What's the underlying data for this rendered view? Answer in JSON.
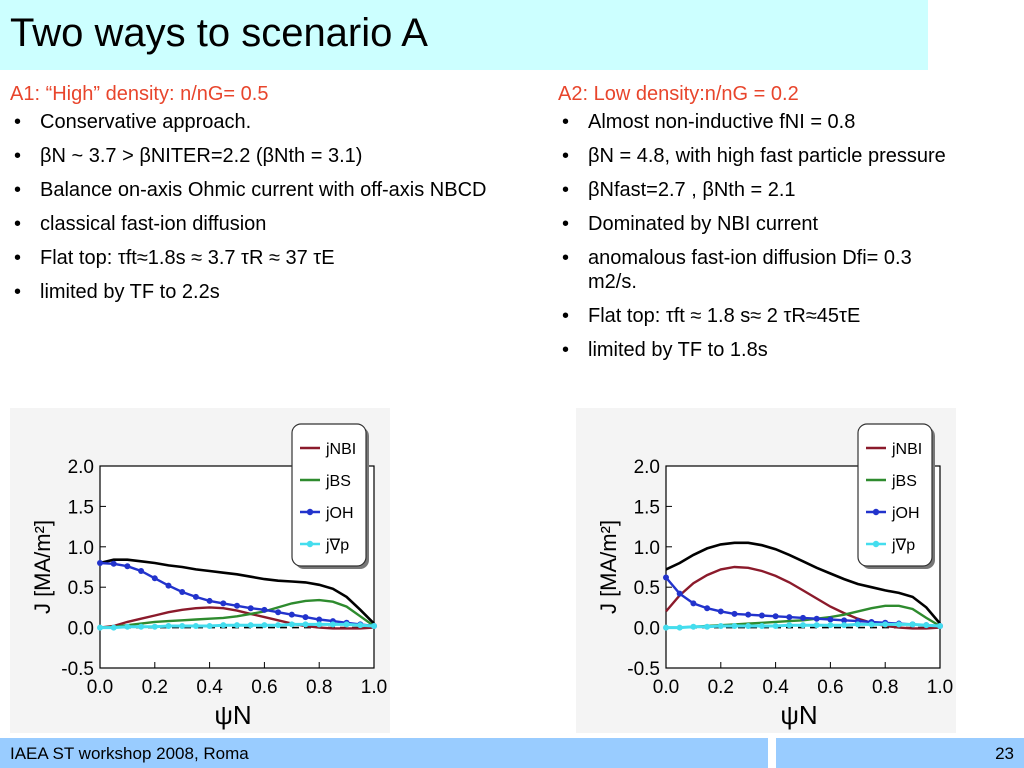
{
  "slide": {
    "title": "Two ways to scenario A",
    "footer_left": "IAEA ST workshop 2008, Roma",
    "page_number": "23"
  },
  "col_a": {
    "heading": "A1: “High” density: n/nG= 0.5",
    "bullets": [
      "Conservative approach.",
      "βN ~ 3.7 > βNITER=2.2 (βNth = 3.1)",
      "Balance on-axis Ohmic current with off-axis NBCD",
      "classical fast-ion diffusion",
      "Flat top: τft≈1.8s ≈ 3.7 τR ≈ 37 τE",
      "limited by TF to 2.2s"
    ]
  },
  "col_b": {
    "heading": "A2: Low density:n/nG = 0.2",
    "bullets": [
      "Almost non-inductive fNI = 0.8",
      "βN = 4.8, with high fast particle pressure",
      "βNfast=2.7 , βNth = 2.1",
      "Dominated by NBI current",
      "anomalous fast-ion diffusion Dfi= 0.3 m2/s.",
      "Flat top: τft ≈ 1.8 s≈ 2 τR≈45τE",
      "limited by TF to 1.8s"
    ]
  },
  "chart_data": [
    {
      "type": "line",
      "ylabel": "J [MA/m²]",
      "xlabel": "ψN",
      "xlim": [
        0,
        1.0
      ],
      "ylim": [
        -0.5,
        2.0
      ],
      "xticks": [
        "0.0",
        "0.2",
        "0.4",
        "0.6",
        "0.8",
        "1.0"
      ],
      "yticks": [
        "2.0",
        "1.5",
        "1.0",
        "0.5",
        "0.0",
        "-0.5"
      ],
      "legend_position": "top-right",
      "legend": [
        "jNBI",
        "jBS",
        "jOH",
        "j∇p"
      ],
      "x": [
        0,
        0.05,
        0.1,
        0.15,
        0.2,
        0.25,
        0.3,
        0.35,
        0.4,
        0.45,
        0.5,
        0.55,
        0.6,
        0.65,
        0.7,
        0.75,
        0.8,
        0.85,
        0.9,
        0.95,
        1.0
      ],
      "series": [
        {
          "name": "jtotal",
          "color": "#000000",
          "values": [
            0.8,
            0.84,
            0.84,
            0.82,
            0.8,
            0.77,
            0.75,
            0.72,
            0.7,
            0.68,
            0.66,
            0.63,
            0.6,
            0.58,
            0.57,
            0.56,
            0.53,
            0.48,
            0.38,
            0.22,
            0.05
          ]
        },
        {
          "name": "jNBI",
          "color": "#8b1a2b",
          "values": [
            0.0,
            0.02,
            0.07,
            0.11,
            0.15,
            0.19,
            0.22,
            0.24,
            0.25,
            0.24,
            0.21,
            0.17,
            0.13,
            0.09,
            0.05,
            0.02,
            0.0,
            -0.01,
            -0.01,
            -0.01,
            0.0
          ]
        },
        {
          "name": "jBS",
          "color": "#2e8b2e",
          "values": [
            0.0,
            0.01,
            0.03,
            0.05,
            0.07,
            0.08,
            0.09,
            0.1,
            0.11,
            0.12,
            0.14,
            0.17,
            0.2,
            0.25,
            0.3,
            0.33,
            0.34,
            0.32,
            0.26,
            0.14,
            0.02
          ]
        },
        {
          "name": "jOH",
          "color": "#2233cc",
          "values": [
            0.8,
            0.79,
            0.76,
            0.7,
            0.61,
            0.52,
            0.44,
            0.38,
            0.33,
            0.3,
            0.27,
            0.24,
            0.22,
            0.19,
            0.16,
            0.13,
            0.1,
            0.08,
            0.06,
            0.04,
            0.02
          ]
        },
        {
          "name": "j∇p",
          "color": "#44ddee",
          "values": [
            0.0,
            0.0,
            0.01,
            0.01,
            0.01,
            0.02,
            0.02,
            0.02,
            0.02,
            0.03,
            0.03,
            0.03,
            0.03,
            0.03,
            0.04,
            0.04,
            0.04,
            0.04,
            0.04,
            0.03,
            0.02
          ]
        }
      ]
    },
    {
      "type": "line",
      "ylabel": "J [MA/m²]",
      "xlabel": "ψN",
      "xlim": [
        0,
        1.0
      ],
      "ylim": [
        -0.5,
        2.0
      ],
      "xticks": [
        "0.0",
        "0.2",
        "0.4",
        "0.6",
        "0.8",
        "1.0"
      ],
      "yticks": [
        "2.0",
        "1.5",
        "1.0",
        "0.5",
        "0.0",
        "-0.5"
      ],
      "legend_position": "top-right",
      "legend": [
        "jNBI",
        "jBS",
        "jOH",
        "j∇p"
      ],
      "x": [
        0,
        0.05,
        0.1,
        0.15,
        0.2,
        0.25,
        0.3,
        0.35,
        0.4,
        0.45,
        0.5,
        0.55,
        0.6,
        0.65,
        0.7,
        0.75,
        0.8,
        0.85,
        0.9,
        0.95,
        1.0
      ],
      "series": [
        {
          "name": "jtotal",
          "color": "#000000",
          "values": [
            0.72,
            0.8,
            0.9,
            0.98,
            1.03,
            1.05,
            1.05,
            1.02,
            0.97,
            0.9,
            0.82,
            0.74,
            0.67,
            0.6,
            0.54,
            0.5,
            0.46,
            0.43,
            0.38,
            0.25,
            0.05
          ]
        },
        {
          "name": "jNBI",
          "color": "#8b1a2b",
          "values": [
            0.2,
            0.4,
            0.55,
            0.65,
            0.72,
            0.75,
            0.74,
            0.7,
            0.64,
            0.56,
            0.46,
            0.36,
            0.26,
            0.18,
            0.11,
            0.06,
            0.02,
            0.0,
            -0.01,
            -0.01,
            0.0
          ]
        },
        {
          "name": "jBS",
          "color": "#2e8b2e",
          "values": [
            0.0,
            0.0,
            0.01,
            0.02,
            0.03,
            0.04,
            0.05,
            0.06,
            0.07,
            0.08,
            0.09,
            0.11,
            0.13,
            0.16,
            0.2,
            0.24,
            0.27,
            0.27,
            0.23,
            0.12,
            0.02
          ]
        },
        {
          "name": "jOH",
          "color": "#2233cc",
          "values": [
            0.62,
            0.42,
            0.3,
            0.24,
            0.2,
            0.17,
            0.16,
            0.15,
            0.14,
            0.13,
            0.12,
            0.11,
            0.1,
            0.09,
            0.08,
            0.07,
            0.06,
            0.05,
            0.04,
            0.03,
            0.02
          ]
        },
        {
          "name": "j∇p",
          "color": "#44ddee",
          "values": [
            0.0,
            0.0,
            0.01,
            0.01,
            0.02,
            0.02,
            0.02,
            0.02,
            0.02,
            0.03,
            0.03,
            0.03,
            0.03,
            0.03,
            0.04,
            0.04,
            0.04,
            0.04,
            0.04,
            0.03,
            0.02
          ]
        }
      ]
    }
  ]
}
